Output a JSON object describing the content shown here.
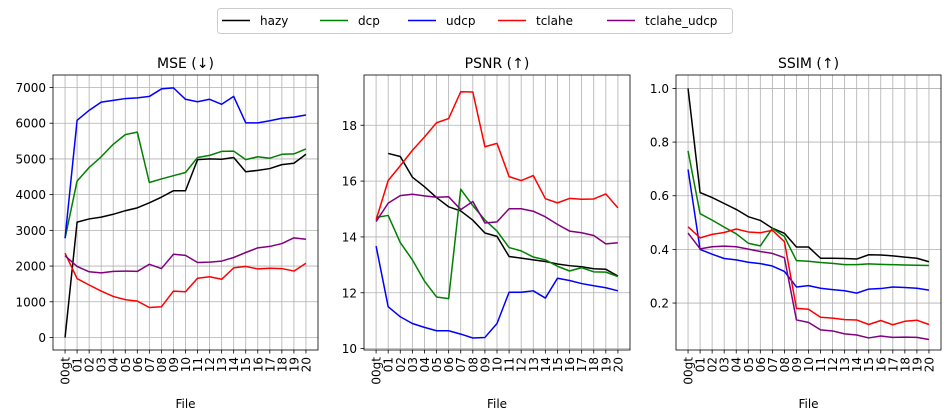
{
  "legend": {
    "entries": [
      {
        "name": "hazy",
        "color": "#000000"
      },
      {
        "name": "dcp",
        "color": "#008000"
      },
      {
        "name": "udcp",
        "color": "#0000ff"
      },
      {
        "name": "tclahe",
        "color": "#ff0000"
      },
      {
        "name": "tclahe_udcp",
        "color": "#800080"
      }
    ],
    "placement": "top-center"
  },
  "chart_data": [
    {
      "type": "line",
      "title": "MSE (↓)",
      "xlabel": "File",
      "ylabel": "",
      "x": [
        "00gt",
        "01",
        "02",
        "03",
        "04",
        "05",
        "06",
        "07",
        "08",
        "09",
        "10",
        "11",
        "12",
        "13",
        "14",
        "15",
        "16",
        "17",
        "18",
        "19",
        "20"
      ],
      "ylim": [
        -350,
        7350
      ],
      "yticks": [
        0,
        1000,
        2000,
        3000,
        4000,
        5000,
        6000,
        7000
      ],
      "grid": true,
      "series": [
        {
          "name": "hazy",
          "values": [
            0,
            3230,
            3320,
            3370,
            3450,
            3550,
            3630,
            3770,
            3930,
            4110,
            4110,
            4980,
            5000,
            4990,
            5040,
            4640,
            4680,
            4730,
            4840,
            4880,
            5130
          ]
        },
        {
          "name": "dcp",
          "values": [
            2780,
            4380,
            4760,
            5060,
            5410,
            5680,
            5750,
            4340,
            4440,
            4530,
            4620,
            5040,
            5100,
            5210,
            5220,
            4980,
            5060,
            5020,
            5130,
            5140,
            5280
          ]
        },
        {
          "name": "udcp",
          "values": [
            2780,
            6080,
            6360,
            6590,
            6640,
            6690,
            6710,
            6750,
            6960,
            6990,
            6670,
            6600,
            6670,
            6530,
            6750,
            6010,
            6010,
            6070,
            6140,
            6170,
            6230
          ]
        },
        {
          "name": "tclahe",
          "values": [
            2360,
            1650,
            1470,
            1300,
            1150,
            1060,
            1020,
            840,
            860,
            1300,
            1280,
            1660,
            1700,
            1630,
            1950,
            1990,
            1920,
            1940,
            1930,
            1860,
            2080
          ]
        },
        {
          "name": "tclahe_udcp",
          "values": [
            2290,
            1990,
            1840,
            1810,
            1850,
            1860,
            1850,
            2050,
            1930,
            2330,
            2300,
            2100,
            2110,
            2140,
            2240,
            2380,
            2510,
            2550,
            2630,
            2790,
            2750
          ]
        }
      ]
    },
    {
      "type": "line",
      "title": "PSNR (↑)",
      "xlabel": "File",
      "ylabel": "",
      "x": [
        "00gt",
        "01",
        "02",
        "03",
        "04",
        "05",
        "06",
        "07",
        "08",
        "09",
        "10",
        "11",
        "12",
        "13",
        "14",
        "15",
        "16",
        "17",
        "18",
        "19",
        "20"
      ],
      "ylim": [
        9.95,
        19.8
      ],
      "yticks": [
        10,
        12,
        14,
        16,
        18
      ],
      "grid": true,
      "series": [
        {
          "name": "hazy",
          "values": [
            null,
            16.99,
            16.88,
            16.14,
            15.8,
            15.41,
            15.08,
            14.93,
            14.6,
            14.14,
            14.02,
            13.3,
            13.24,
            13.18,
            13.12,
            13.03,
            12.97,
            12.93,
            12.86,
            12.84,
            12.6
          ]
        },
        {
          "name": "dcp",
          "values": [
            14.7,
            14.77,
            13.8,
            13.18,
            12.42,
            11.85,
            11.79,
            15.71,
            15.12,
            14.61,
            14.21,
            13.62,
            13.5,
            13.28,
            13.18,
            12.95,
            12.78,
            12.9,
            12.75,
            12.74,
            12.58
          ]
        },
        {
          "name": "udcp",
          "values": [
            13.67,
            11.5,
            11.14,
            10.9,
            10.76,
            10.64,
            10.64,
            10.52,
            10.38,
            10.4,
            10.9,
            12.02,
            12.02,
            12.07,
            11.81,
            12.52,
            12.44,
            12.33,
            12.25,
            12.18,
            12.07
          ]
        },
        {
          "name": "tclahe",
          "values": [
            14.61,
            16.02,
            16.55,
            17.1,
            17.58,
            18.09,
            18.24,
            19.2,
            19.19,
            17.23,
            17.35,
            16.16,
            16.02,
            16.2,
            15.37,
            15.22,
            15.38,
            15.35,
            15.36,
            15.54,
            15.04
          ]
        },
        {
          "name": "tclahe_udcp",
          "values": [
            14.55,
            15.21,
            15.48,
            15.53,
            15.47,
            15.42,
            15.44,
            14.98,
            15.27,
            14.5,
            14.54,
            15.01,
            15.01,
            14.92,
            14.72,
            14.45,
            14.21,
            14.15,
            14.05,
            13.75,
            13.79
          ]
        }
      ]
    },
    {
      "type": "line",
      "title": "SSIM (↑)",
      "xlabel": "File",
      "ylabel": "",
      "x": [
        "00gt",
        "01",
        "02",
        "03",
        "04",
        "05",
        "06",
        "07",
        "08",
        "09",
        "10",
        "11",
        "12",
        "13",
        "14",
        "15",
        "16",
        "17",
        "18",
        "19",
        "20"
      ],
      "ylim": [
        0.025,
        1.05
      ],
      "yticks": [
        0.2,
        0.4,
        0.6,
        0.8,
        1.0
      ],
      "ytick_labels": [
        "0.2",
        "0.4",
        "0.6",
        "0.8",
        "1.0"
      ],
      "grid": true,
      "series": [
        {
          "name": "hazy",
          "values": [
            1.0,
            0.612,
            0.593,
            0.571,
            0.549,
            0.522,
            0.508,
            0.479,
            0.46,
            0.409,
            0.409,
            0.367,
            0.367,
            0.366,
            0.364,
            0.38,
            0.379,
            0.376,
            0.371,
            0.367,
            0.354
          ]
        },
        {
          "name": "dcp",
          "values": [
            0.767,
            0.533,
            0.509,
            0.483,
            0.458,
            0.423,
            0.413,
            0.478,
            0.448,
            0.358,
            0.356,
            0.351,
            0.348,
            0.343,
            0.343,
            0.346,
            0.344,
            0.343,
            0.342,
            0.341,
            0.34
          ]
        },
        {
          "name": "udcp",
          "values": [
            0.698,
            0.4,
            0.382,
            0.366,
            0.361,
            0.352,
            0.347,
            0.338,
            0.318,
            0.26,
            0.265,
            0.255,
            0.25,
            0.246,
            0.237,
            0.252,
            0.254,
            0.26,
            0.258,
            0.255,
            0.248
          ]
        },
        {
          "name": "tclahe",
          "values": [
            0.484,
            0.443,
            0.456,
            0.463,
            0.476,
            0.465,
            0.462,
            0.471,
            0.429,
            0.18,
            0.177,
            0.147,
            0.144,
            0.138,
            0.137,
            0.12,
            0.135,
            0.119,
            0.132,
            0.136,
            0.12
          ]
        },
        {
          "name": "tclahe_udcp",
          "values": [
            0.461,
            0.402,
            0.41,
            0.412,
            0.41,
            0.401,
            0.392,
            0.385,
            0.369,
            0.137,
            0.128,
            0.1,
            0.096,
            0.085,
            0.081,
            0.07,
            0.077,
            0.072,
            0.073,
            0.072,
            0.064
          ]
        }
      ]
    }
  ]
}
